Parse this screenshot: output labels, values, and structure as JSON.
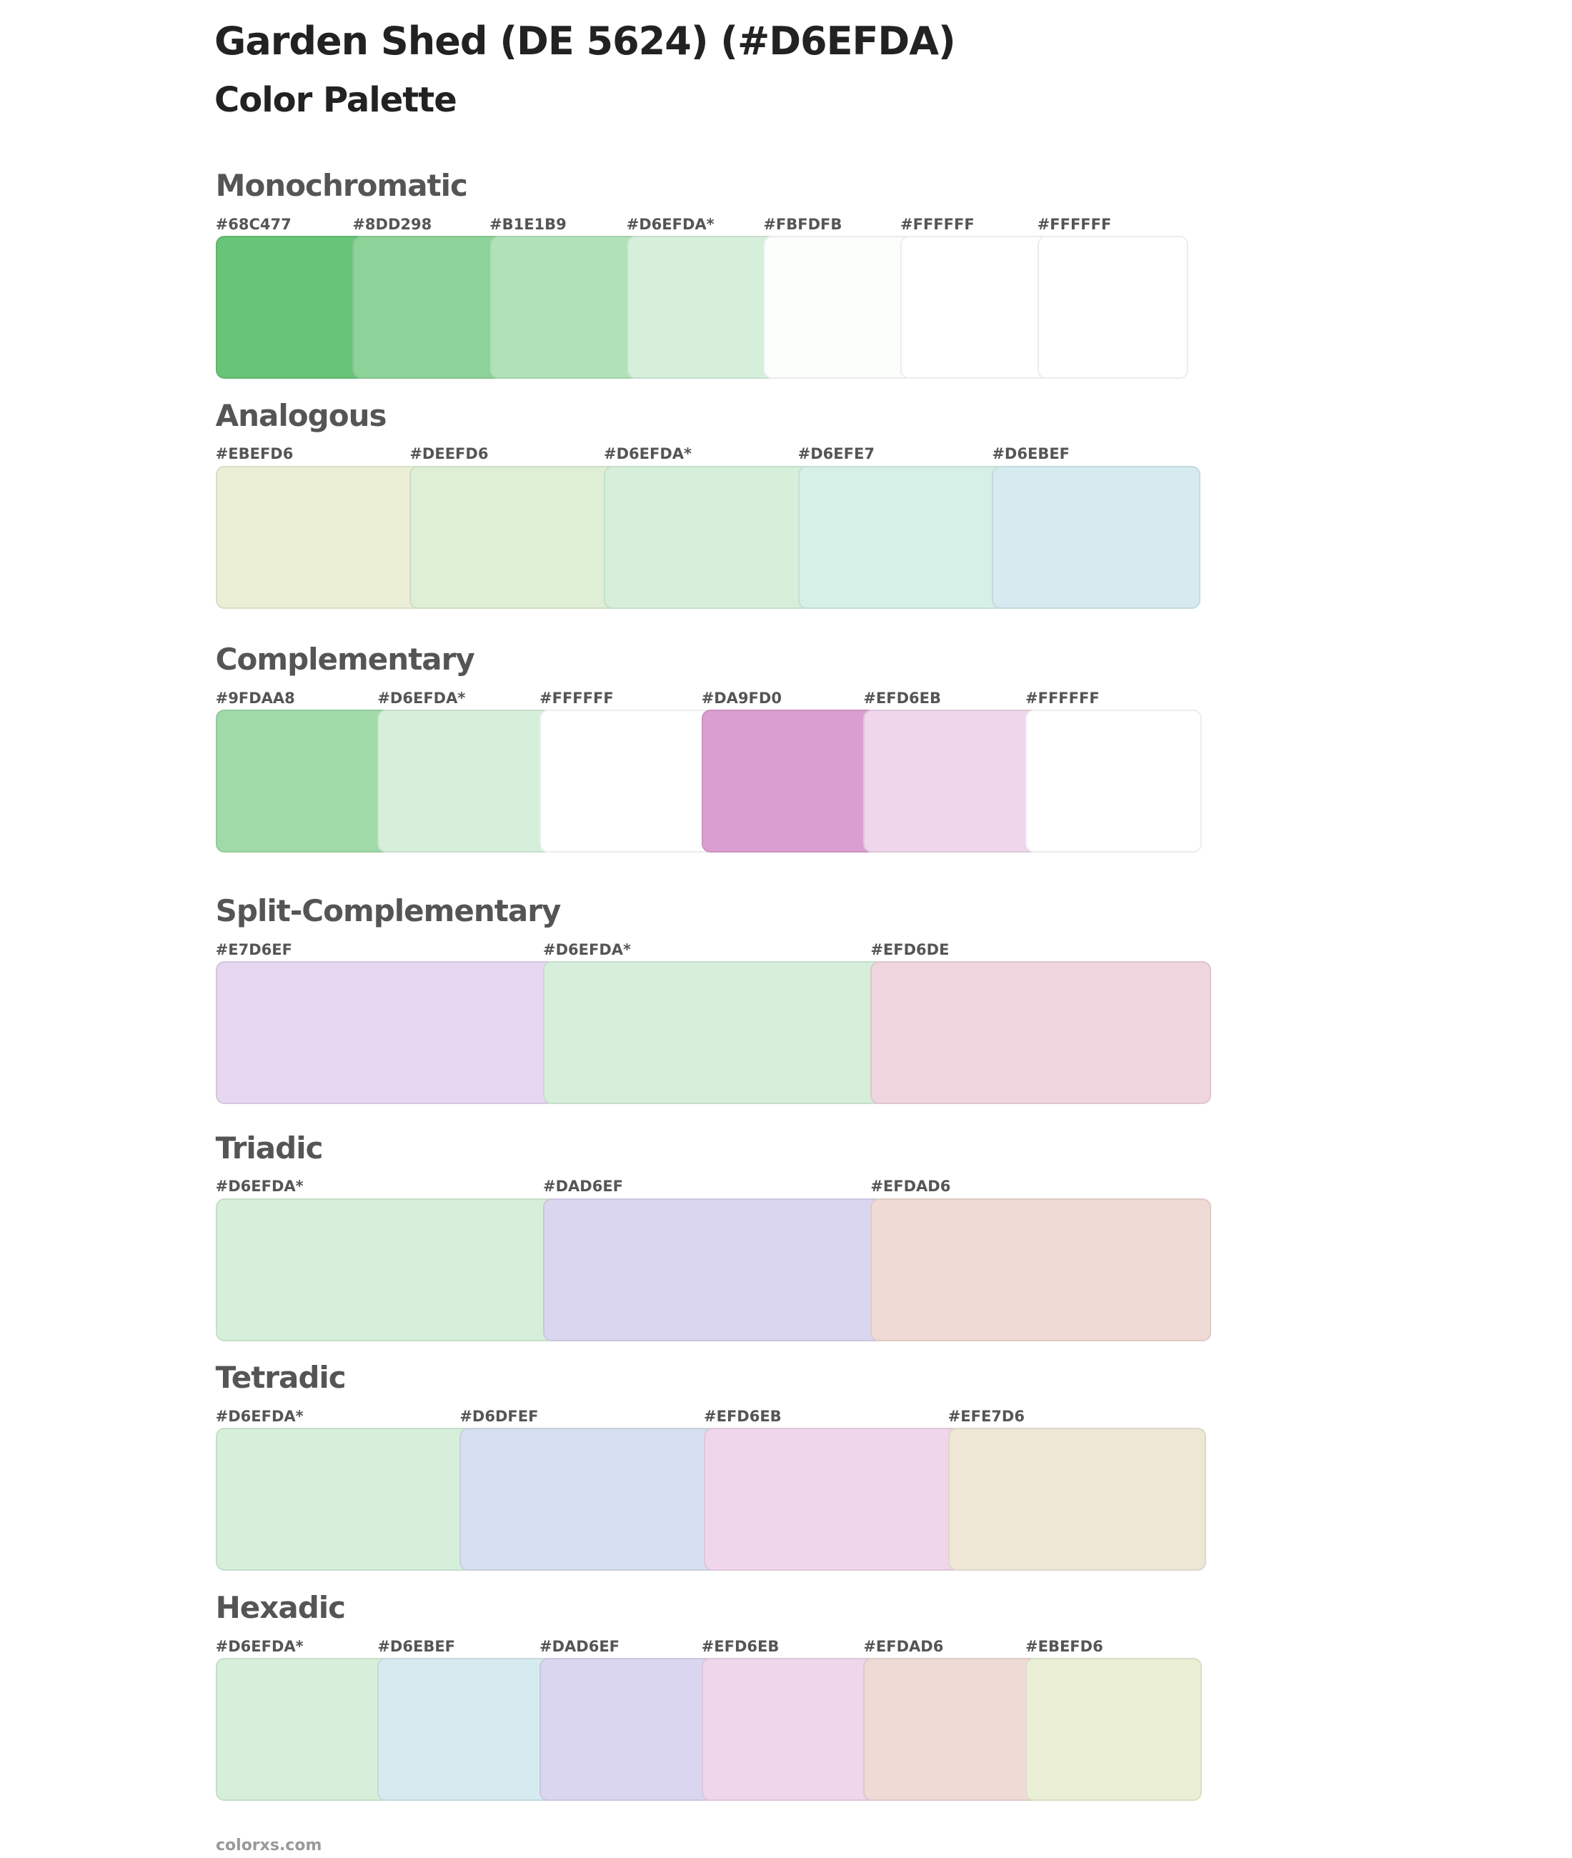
{
  "header": {
    "title": "Garden Shed (DE 5624) (#D6EFDA)",
    "subtitle": "Color Palette"
  },
  "sections": [
    {
      "name": "Monochromatic",
      "swatches": [
        {
          "label": "#68C477",
          "color": "#68C477"
        },
        {
          "label": "#8DD298",
          "color": "#8DD298"
        },
        {
          "label": "#B1E1B9",
          "color": "#B1E1B9"
        },
        {
          "label": "#D6EFDA*",
          "color": "#D6EFDA"
        },
        {
          "label": "#FBFDFB",
          "color": "#FBFDFB"
        },
        {
          "label": "#FFFFFF",
          "color": "#FFFFFF"
        },
        {
          "label": "#FFFFFF",
          "color": "#FFFFFF"
        }
      ]
    },
    {
      "name": "Analogous",
      "swatches": [
        {
          "label": "#EBEFD6",
          "color": "#EBEFD6"
        },
        {
          "label": "#DEEFD6",
          "color": "#DEEFD6"
        },
        {
          "label": "#D6EFDA*",
          "color": "#D6EFDA"
        },
        {
          "label": "#D6EFE7",
          "color": "#D6EFE7"
        },
        {
          "label": "#D6EBEF",
          "color": "#D6EBEF"
        }
      ]
    },
    {
      "name": "Complementary",
      "swatches": [
        {
          "label": "#9FDAA8",
          "color": "#9FDAA8"
        },
        {
          "label": "#D6EFDA*",
          "color": "#D6EFDA"
        },
        {
          "label": "#FFFFFF",
          "color": "#FFFFFF"
        },
        {
          "label": "#DA9FD0",
          "color": "#DA9FD0"
        },
        {
          "label": "#EFD6EB",
          "color": "#EFD6EB"
        },
        {
          "label": "#FFFFFF",
          "color": "#FFFFFF"
        }
      ]
    },
    {
      "name": "Split-Complementary",
      "swatches": [
        {
          "label": "#E7D6EF",
          "color": "#E7D6EF"
        },
        {
          "label": "#D6EFDA*",
          "color": "#D6EFDA"
        },
        {
          "label": "#EFD6DE",
          "color": "#EFD6DE"
        }
      ]
    },
    {
      "name": "Triadic",
      "swatches": [
        {
          "label": "#D6EFDA*",
          "color": "#D6EFDA"
        },
        {
          "label": "#DAD6EF",
          "color": "#DAD6EF"
        },
        {
          "label": "#EFDAD6",
          "color": "#EFDAD6"
        }
      ]
    },
    {
      "name": "Tetradic",
      "swatches": [
        {
          "label": "#D6EFDA*",
          "color": "#D6EFDA"
        },
        {
          "label": "#D6DFEF",
          "color": "#D6DFEF"
        },
        {
          "label": "#EFD6EB",
          "color": "#EFD6EB"
        },
        {
          "label": "#EFE7D6",
          "color": "#EFE7D6"
        }
      ]
    },
    {
      "name": "Hexadic",
      "swatches": [
        {
          "label": "#D6EFDA*",
          "color": "#D6EFDA"
        },
        {
          "label": "#D6EBEF",
          "color": "#D6EBEF"
        },
        {
          "label": "#DAD6EF",
          "color": "#DAD6EF"
        },
        {
          "label": "#EFD6EB",
          "color": "#EFD6EB"
        },
        {
          "label": "#EFDAD6",
          "color": "#EFDAD6"
        },
        {
          "label": "#EBEFD6",
          "color": "#EBEFD6"
        }
      ]
    }
  ],
  "footer": "colorxs.com"
}
